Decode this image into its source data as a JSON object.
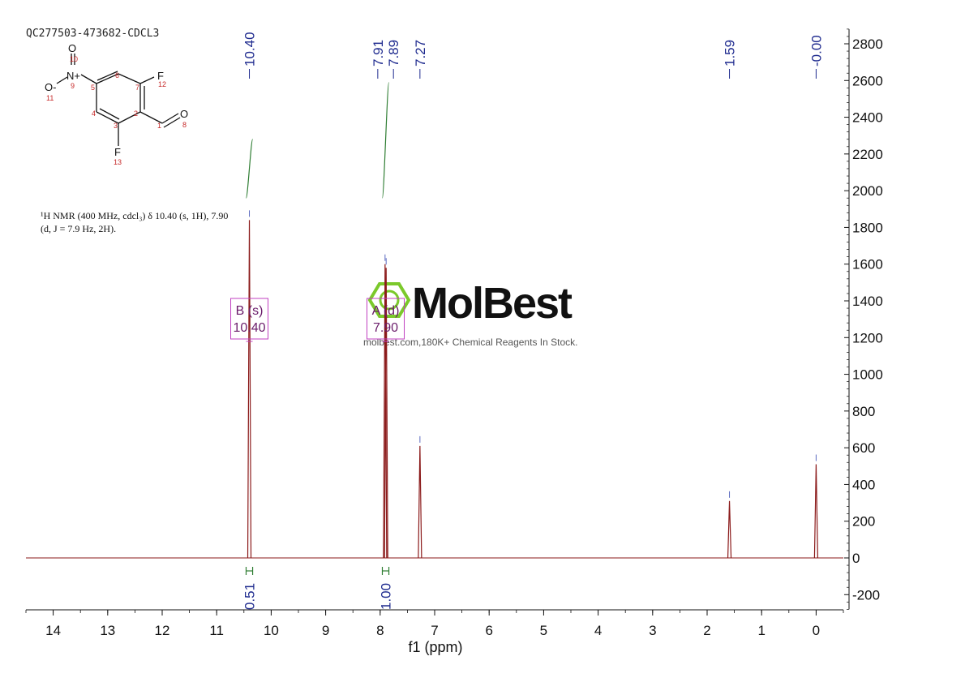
{
  "sample_id": "QC277503-473682-CDCL3",
  "description_lines": [
    "¹H NMR (400 MHz, cdcl₃) δ 10.40 (s, 1H), 7.90",
    "(d, J = 7.9 Hz, 2H)."
  ],
  "watermark": {
    "name": "MolBest",
    "tagline": "molbest.com,180K+ Chemical Reagents In Stock."
  },
  "molecule": {
    "atoms": [
      {
        "label": "O",
        "number": "10"
      },
      {
        "label": "N+",
        "number": "9"
      },
      {
        "label": "O-",
        "number": "11"
      },
      {
        "label": "F",
        "number": "12"
      },
      {
        "label": "O",
        "number": "8"
      },
      {
        "label": "F",
        "number": "13"
      },
      {
        "label": "",
        "number": "6"
      },
      {
        "label": "",
        "number": "7"
      },
      {
        "label": "",
        "number": "5"
      },
      {
        "label": "",
        "number": "2"
      },
      {
        "label": "",
        "number": "4"
      },
      {
        "label": "",
        "number": "3"
      },
      {
        "label": "",
        "number": "1"
      }
    ]
  },
  "chart_data": {
    "type": "line",
    "xlabel": "f1 (ppm)",
    "xlim": [
      14.5,
      -0.5
    ],
    "ylim": [
      -280,
      2880
    ],
    "x_ticks": [
      14,
      13,
      12,
      11,
      10,
      9,
      8,
      7,
      6,
      5,
      4,
      3,
      2,
      1,
      0
    ],
    "y_ticks": [
      -200,
      0,
      200,
      400,
      600,
      800,
      1000,
      1200,
      1400,
      1600,
      1800,
      2000,
      2200,
      2400,
      2600,
      2800
    ],
    "y_axis_side": "right",
    "spectrum": {
      "color": "#8b1a1a",
      "peaks": [
        {
          "ppm": 10.4,
          "height": 1840
        },
        {
          "ppm": 7.91,
          "height": 1600
        },
        {
          "ppm": 7.89,
          "height": 1580
        },
        {
          "ppm": 7.27,
          "height": 610
        },
        {
          "ppm": 1.59,
          "height": 310
        },
        {
          "ppm": 0.0,
          "height": 510
        }
      ]
    },
    "peak_labels": [
      "10.40",
      "7.91",
      "7.89",
      "7.27",
      "1.59",
      "-0.00"
    ],
    "peak_label_values": [
      10.4,
      7.91,
      7.89,
      7.27,
      1.59,
      0.0
    ],
    "multiplets": [
      {
        "name": "B (s)",
        "shift": "10.40",
        "ppm": 10.4
      },
      {
        "name": "A (d)",
        "shift": "7.90",
        "ppm": 7.9
      }
    ],
    "integrals": [
      {
        "value": "0.51",
        "from": 10.46,
        "to": 10.34,
        "y_from": 1960,
        "y_to": 2280
      },
      {
        "value": "1.00",
        "from": 7.96,
        "to": 7.84,
        "y_from": 1960,
        "y_to": 2590
      }
    ],
    "integral_color": "#2e7d32",
    "multiplet_color": "#c040c0"
  }
}
